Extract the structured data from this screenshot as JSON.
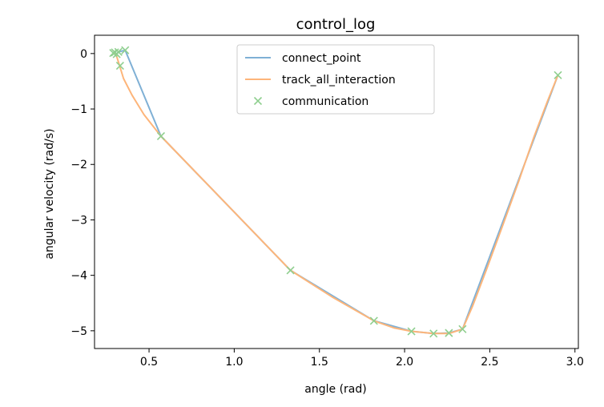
{
  "chart_data": {
    "type": "line",
    "title": "control_log",
    "xlabel": "angle (rad)",
    "ylabel": "angular velocity (rad/s)",
    "xlim": [
      0.18,
      3.02
    ],
    "ylim": [
      -5.32,
      0.33
    ],
    "xticks": [
      0.5,
      1.0,
      1.5,
      2.0,
      2.5,
      3.0
    ],
    "xtick_labels": [
      "0.5",
      "1.0",
      "1.5",
      "2.0",
      "2.5",
      "3.0"
    ],
    "yticks": [
      0,
      -1,
      -2,
      -3,
      -4,
      -5
    ],
    "ytick_labels": [
      "0",
      "−1",
      "−2",
      "−3",
      "−4",
      "−5"
    ],
    "grid": false,
    "legend_position": "top-center",
    "series": [
      {
        "name": "connect_point",
        "kind": "line",
        "color": "#7fb0d5",
        "points": [
          [
            0.29,
            0.01
          ],
          [
            0.3,
            0.02
          ],
          [
            0.31,
            -0.01
          ],
          [
            0.32,
            0.03
          ],
          [
            0.36,
            0.06
          ],
          [
            0.57,
            -1.49
          ],
          [
            1.33,
            -3.91
          ],
          [
            1.82,
            -4.82
          ],
          [
            2.04,
            -5.01
          ],
          [
            2.17,
            -5.05
          ],
          [
            2.26,
            -5.04
          ],
          [
            2.34,
            -4.97
          ],
          [
            2.9,
            -0.39
          ]
        ]
      },
      {
        "name": "track_all_interaction",
        "kind": "line",
        "color": "#fdb57a",
        "points": [
          [
            0.29,
            0.01
          ],
          [
            0.3,
            0.0
          ],
          [
            0.31,
            -0.05
          ],
          [
            0.32,
            -0.15
          ],
          [
            0.35,
            -0.45
          ],
          [
            0.4,
            -0.75
          ],
          [
            0.47,
            -1.1
          ],
          [
            0.57,
            -1.49
          ],
          [
            0.95,
            -2.7
          ],
          [
            1.33,
            -3.91
          ],
          [
            1.58,
            -4.4
          ],
          [
            1.82,
            -4.82
          ],
          [
            1.94,
            -4.95
          ],
          [
            2.04,
            -5.01
          ],
          [
            2.17,
            -5.05
          ],
          [
            2.26,
            -5.05
          ],
          [
            2.34,
            -4.97
          ],
          [
            2.4,
            -4.55
          ],
          [
            2.48,
            -3.9
          ],
          [
            2.57,
            -3.15
          ],
          [
            2.67,
            -2.3
          ],
          [
            2.76,
            -1.5
          ],
          [
            2.84,
            -0.85
          ],
          [
            2.9,
            -0.39
          ]
        ]
      },
      {
        "name": "communication",
        "kind": "scatter",
        "marker": "x",
        "color": "#8fcf8f",
        "points": [
          [
            0.29,
            0.01
          ],
          [
            0.3,
            0.02
          ],
          [
            0.31,
            -0.01
          ],
          [
            0.32,
            0.03
          ],
          [
            0.33,
            -0.22
          ],
          [
            0.36,
            0.06
          ],
          [
            0.57,
            -1.49
          ],
          [
            1.33,
            -3.91
          ],
          [
            1.82,
            -4.82
          ],
          [
            2.04,
            -5.01
          ],
          [
            2.17,
            -5.05
          ],
          [
            2.26,
            -5.04
          ],
          [
            2.34,
            -4.97
          ],
          [
            2.9,
            -0.39
          ]
        ]
      }
    ]
  }
}
